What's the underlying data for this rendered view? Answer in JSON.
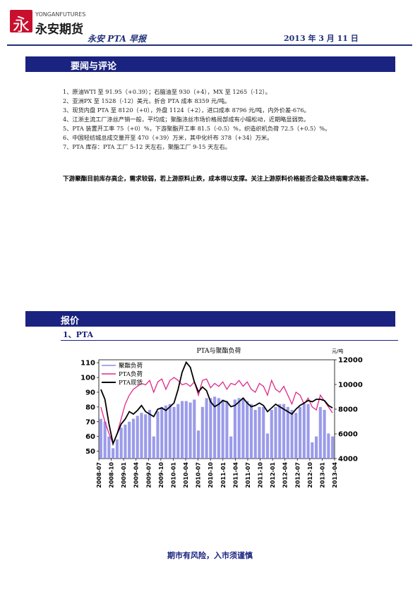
{
  "header": {
    "logo_en": "YONGANFUTURES",
    "logo_cn": "永安期货",
    "report_title": "永安 PTA 早报",
    "date": "2013 年 3 月 11 日"
  },
  "sections": {
    "news_title": "要闻与评论",
    "quote_title": "报价"
  },
  "news": [
    "1、原油WTI 至 91.95（+0.39）；石脑油至 930（+4），MX 至 1265（-12）。",
    "2、亚洲PX 至 1528（-12）美元，折合 PTA 成本 8359 元/吨。",
    "3、现货内盘 PTA 至 8120（+0），外盘 1124（+2），进口成本 8796 元/吨，内外价差-676。",
    "4、江浙主流工厂涤丝产销一般，平均成；聚酯涤丝市场价格局部成有小幅松动，近期略显弱势。",
    "5、PTA 装置开工率 75（+0）%，下游聚酯开工率 81.5（-0.5）%，织造织机负荷 72.5（+0.5）%。",
    "6、中国轻纺城总成交量开至 470（+39）万米，其中化纤布 378（+34）万米。",
    "7、PTA 库存：PTA 工厂 5-12 天左右，聚酯工厂 9-15 天左右。"
  ],
  "summary": "下游聚酯目前库存高企，需求较弱，若上游原料止跌，成本得以支撑。关注上游原料价格能否企稳及终端需求改善。",
  "quote_sub": "1、PTA",
  "footer": "期市有风险，入市须谨慎",
  "colors": {
    "navy": "#1a2380",
    "polyester": "#8a8ae8",
    "pta_load": "#e0288a",
    "spot": "#000000"
  },
  "chart_data": {
    "type": "line",
    "title": "PTA与聚酯负荷",
    "y2_unit": "元/吨",
    "y_ticks": [
      50,
      60,
      70,
      80,
      90,
      100,
      110
    ],
    "y2_ticks": [
      4000,
      6000,
      8000,
      10000,
      12000
    ],
    "ylim": [
      45,
      112
    ],
    "y2lim": [
      4000,
      12000
    ],
    "x_ticks": [
      "2008-07",
      "2008-10",
      "2009-01",
      "2009-04",
      "2009-07",
      "2009-10",
      "2010-01",
      "2010-04",
      "2010-07",
      "2010-10",
      "2011-01",
      "2011-04",
      "2011-07",
      "2011-10",
      "2012-01",
      "2012-04",
      "2012-07",
      "2012-10",
      "2013-01",
      "2013-04"
    ],
    "legend": [
      "聚酯负荷",
      "PTA负荷",
      "PTA现货"
    ],
    "legend_position": "top-left",
    "series": [
      {
        "name": "聚酯负荷",
        "style": "bars",
        "axis": "left",
        "x": [
          0,
          1,
          2,
          3,
          4,
          5,
          6,
          7,
          8,
          9,
          10,
          11,
          12,
          13,
          14,
          15,
          16,
          17,
          18,
          19,
          20,
          21,
          22,
          23,
          24,
          25,
          26,
          27,
          28,
          29,
          30,
          31,
          32,
          33,
          34,
          35,
          36,
          37,
          38,
          39,
          40,
          41,
          42,
          43,
          44,
          45,
          46,
          47,
          48,
          49,
          50,
          51,
          52,
          53,
          54,
          55,
          56,
          57
        ],
        "values": [
          72,
          70,
          60,
          52,
          58,
          66,
          68,
          70,
          72,
          74,
          76,
          75,
          78,
          60,
          77,
          80,
          81,
          82,
          80,
          82,
          84,
          84,
          83,
          85,
          64,
          80,
          86,
          86,
          87,
          86,
          85,
          84,
          60,
          85,
          86,
          86,
          84,
          82,
          78,
          80,
          80,
          62,
          78,
          80,
          82,
          82,
          80,
          78,
          76,
          80,
          82,
          82,
          56,
          60,
          80,
          78,
          62,
          60
        ]
      },
      {
        "name": "PTA负荷",
        "style": "line",
        "axis": "left",
        "x": [
          0,
          1,
          2,
          3,
          4,
          5,
          6,
          7,
          8,
          9,
          10,
          11,
          12,
          13,
          14,
          15,
          16,
          17,
          18,
          19,
          20,
          21,
          22,
          23,
          24,
          25,
          26,
          27,
          28,
          29,
          30,
          31,
          32,
          33,
          34,
          35,
          36,
          37,
          38,
          39,
          40,
          41,
          42,
          43,
          44,
          45,
          46,
          47,
          48,
          49,
          50,
          51,
          52,
          53,
          54,
          55,
          56,
          57
        ],
        "values": [
          80,
          70,
          62,
          55,
          62,
          72,
          82,
          88,
          92,
          94,
          96,
          95,
          98,
          90,
          97,
          99,
          92,
          98,
          100,
          98,
          95,
          96,
          94,
          97,
          88,
          98,
          99,
          93,
          96,
          94,
          97,
          92,
          96,
          95,
          98,
          94,
          97,
          92,
          90,
          96,
          94,
          88,
          98,
          92,
          90,
          94,
          88,
          82,
          90,
          88,
          82,
          86,
          80,
          78,
          88,
          84,
          80,
          76
        ]
      },
      {
        "name": "PTA现货",
        "style": "line",
        "axis": "right",
        "x": [
          0,
          1,
          2,
          3,
          4,
          5,
          6,
          7,
          8,
          9,
          10,
          11,
          12,
          13,
          14,
          15,
          16,
          17,
          18,
          19,
          20,
          21,
          22,
          23,
          24,
          25,
          26,
          27,
          28,
          29,
          30,
          31,
          32,
          33,
          34,
          35,
          36,
          37,
          38,
          39,
          40,
          41,
          42,
          43,
          44,
          45,
          46,
          47,
          48,
          49,
          50,
          51,
          52,
          53,
          54,
          55,
          56,
          57
        ],
        "values": [
          9600,
          8800,
          6800,
          5200,
          6000,
          6800,
          7200,
          7800,
          7600,
          7900,
          8300,
          7800,
          7600,
          7400,
          8000,
          8100,
          7900,
          8200,
          8500,
          9600,
          11000,
          11800,
          11400,
          10200,
          9400,
          9800,
          9500,
          8600,
          8200,
          8400,
          8700,
          8600,
          8200,
          8300,
          8600,
          8900,
          8500,
          8200,
          8300,
          8500,
          8300,
          7800,
          8100,
          8400,
          8200,
          8000,
          7800,
          7600,
          8000,
          8300,
          8500,
          8700,
          8600,
          8800,
          8800,
          8700,
          8300,
          8100
        ]
      }
    ]
  }
}
